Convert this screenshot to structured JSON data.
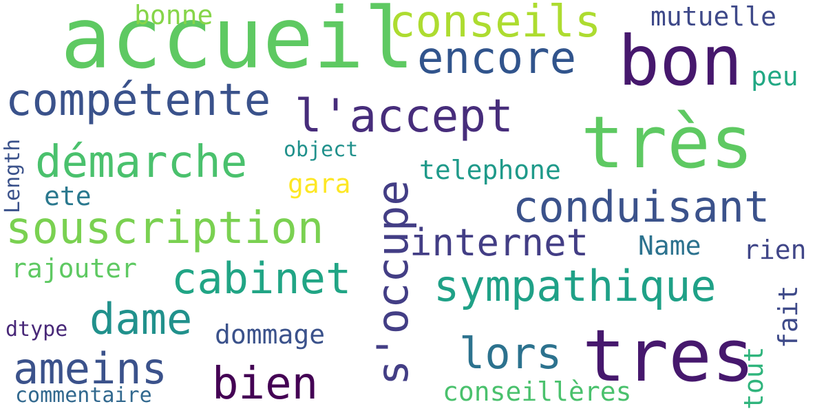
{
  "words": [
    {
      "id": "accueil",
      "text": "accueil",
      "color": "#5ec962"
    },
    {
      "id": "bon",
      "text": "bon",
      "color": "#46186d"
    },
    {
      "id": "tres-accent",
      "text": "très",
      "color": "#5ec962"
    },
    {
      "id": "tres",
      "text": "tres",
      "color": "#46186d"
    },
    {
      "id": "conseils",
      "text": "conseils",
      "color": "#addc30"
    },
    {
      "id": "encore",
      "text": "encore",
      "color": "#31548c"
    },
    {
      "id": "competente",
      "text": "compétente",
      "color": "#3a528b"
    },
    {
      "id": "l-accept",
      "text": "l'accept",
      "color": "#472d7b"
    },
    {
      "id": "demarche",
      "text": "démarche",
      "color": "#4ac16d"
    },
    {
      "id": "souscription",
      "text": "souscription",
      "color": "#7ad151"
    },
    {
      "id": "s-occupe",
      "text": "s'occupe",
      "color": "#433e85"
    },
    {
      "id": "conduisant",
      "text": "conduisant",
      "color": "#3b528b"
    },
    {
      "id": "internet",
      "text": "internet",
      "color": "#433e85"
    },
    {
      "id": "cabinet",
      "text": "cabinet",
      "color": "#21a585"
    },
    {
      "id": "sympathique",
      "text": "sympathique",
      "color": "#1fa187"
    },
    {
      "id": "dame",
      "text": "dame",
      "color": "#21918c"
    },
    {
      "id": "ameins",
      "text": "ameins",
      "color": "#3b528b"
    },
    {
      "id": "bien",
      "text": "bien",
      "color": "#440154"
    },
    {
      "id": "lors",
      "text": "lors",
      "color": "#2c728e"
    },
    {
      "id": "mutuelle",
      "text": "mutuelle",
      "color": "#3e4989"
    },
    {
      "id": "bonne",
      "text": "bonne",
      "color": "#86d549"
    },
    {
      "id": "peu",
      "text": "peu",
      "color": "#22a884"
    },
    {
      "id": "telephone",
      "text": "telephone",
      "color": "#1f9a8a"
    },
    {
      "id": "gara",
      "text": "gara",
      "color": "#fde725"
    },
    {
      "id": "object",
      "text": "object",
      "color": "#21918c"
    },
    {
      "id": "length",
      "text": "Length",
      "color": "#3b528b"
    },
    {
      "id": "ete",
      "text": "ete",
      "color": "#2a788e"
    },
    {
      "id": "name",
      "text": "Name",
      "color": "#2c728e"
    },
    {
      "id": "rien",
      "text": "rien",
      "color": "#404688"
    },
    {
      "id": "rajouter",
      "text": "rajouter",
      "color": "#5ec962"
    },
    {
      "id": "fait",
      "text": "fait",
      "color": "#3e4a89"
    },
    {
      "id": "dtype",
      "text": "dtype",
      "color": "#482878"
    },
    {
      "id": "dommage",
      "text": "dommage",
      "color": "#3b528b"
    },
    {
      "id": "tout",
      "text": "tout",
      "color": "#2fb47c"
    },
    {
      "id": "commentaire",
      "text": "commentaire",
      "color": "#31688e"
    },
    {
      "id": "conseilleres",
      "text": "conseillères",
      "color": "#4ac16d"
    }
  ]
}
